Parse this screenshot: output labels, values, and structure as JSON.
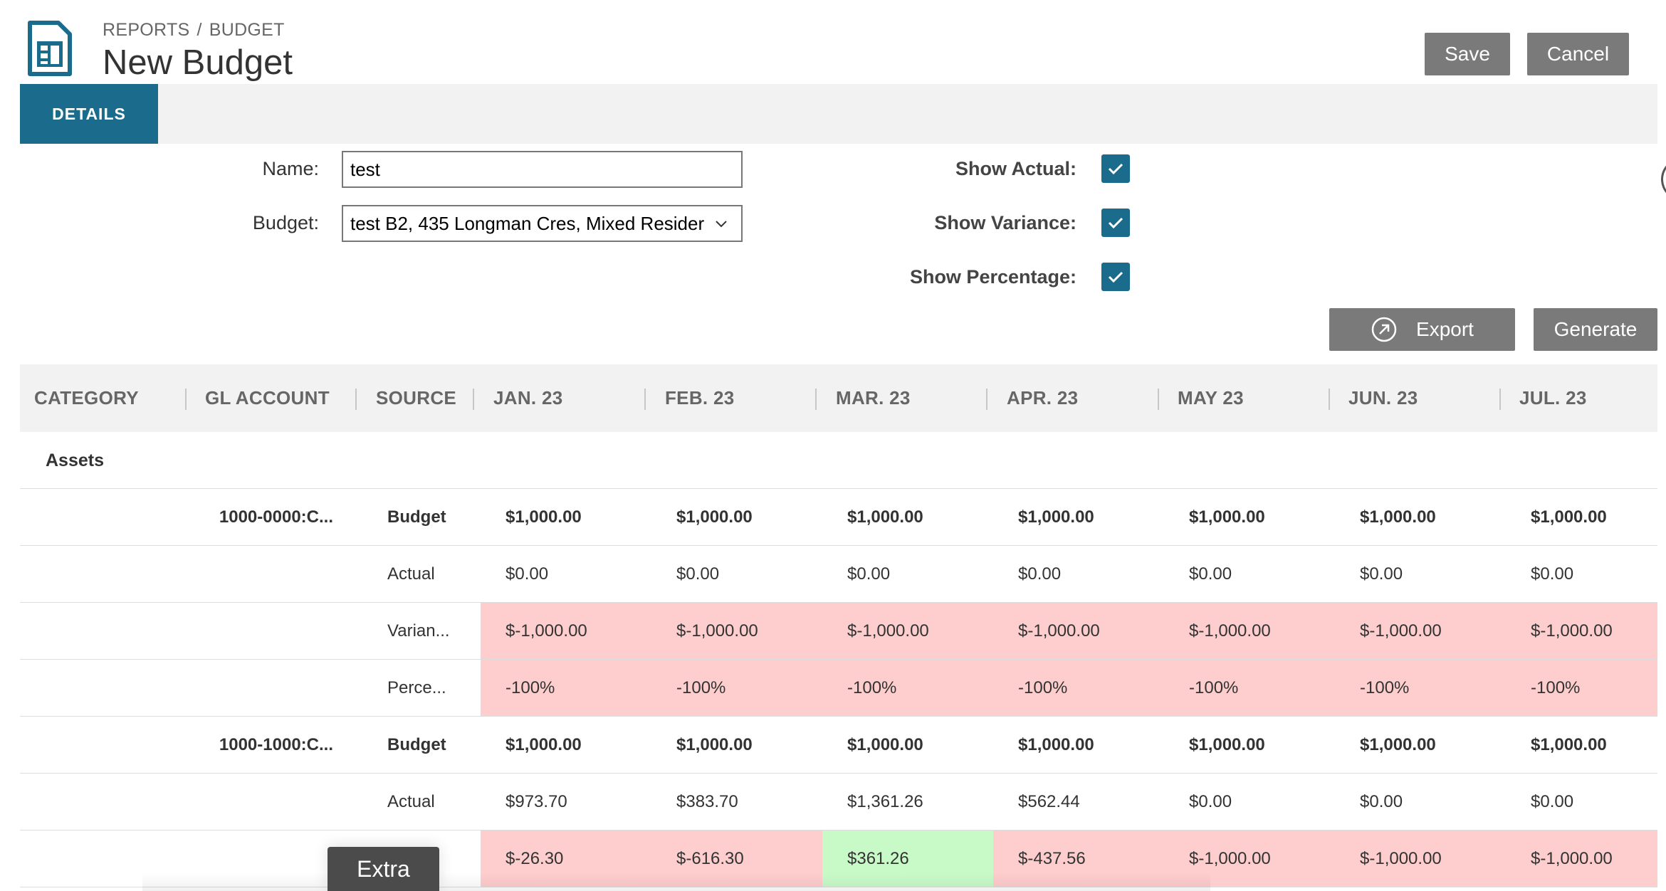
{
  "header": {
    "breadcrumb": [
      "REPORTS",
      "BUDGET"
    ],
    "breadcrumb_separator": "/",
    "title": "New Budget",
    "save_label": "Save",
    "cancel_label": "Cancel",
    "icon": "report-document-icon"
  },
  "tabs": [
    {
      "label": "DETAILS",
      "active": true
    }
  ],
  "form": {
    "name_label": "Name:",
    "name_value": "test",
    "budget_label": "Budget:",
    "budget_value": "test B2,  435 Longman Cres, Mixed Resider",
    "show_actual_label": "Show Actual:",
    "show_actual": true,
    "show_variance_label": "Show Variance:",
    "show_variance": true,
    "show_percentage_label": "Show Percentage:",
    "show_percentage": true
  },
  "actions": {
    "export_label": "Export",
    "generate_label": "Generate"
  },
  "table": {
    "columns": [
      "CATEGORY",
      "GL ACCOUNT",
      "SOURCE",
      "JAN. 23",
      "FEB. 23",
      "MAR. 23",
      "APR. 23",
      "MAY 23",
      "JUN. 23",
      "JUL. 23"
    ],
    "category": "Assets",
    "rows": [
      {
        "gl": "1000-0000:C...",
        "source": "Budget",
        "bold": true,
        "status": "none",
        "values": [
          "$1,000.00",
          "$1,000.00",
          "$1,000.00",
          "$1,000.00",
          "$1,000.00",
          "$1,000.00",
          "$1,000.00"
        ]
      },
      {
        "gl": "",
        "source": "Actual",
        "bold": false,
        "status": "none",
        "values": [
          "$0.00",
          "$0.00",
          "$0.00",
          "$0.00",
          "$0.00",
          "$0.00",
          "$0.00"
        ]
      },
      {
        "gl": "",
        "source": "Varian...",
        "bold": false,
        "status": [
          "neg",
          "neg",
          "neg",
          "neg",
          "neg",
          "neg",
          "neg"
        ],
        "values": [
          "$-1,000.00",
          "$-1,000.00",
          "$-1,000.00",
          "$-1,000.00",
          "$-1,000.00",
          "$-1,000.00",
          "$-1,000.00"
        ]
      },
      {
        "gl": "",
        "source": "Perce...",
        "bold": false,
        "status": [
          "neg",
          "neg",
          "neg",
          "neg",
          "neg",
          "neg",
          "neg"
        ],
        "values": [
          "-100%",
          "-100%",
          "-100%",
          "-100%",
          "-100%",
          "-100%",
          "-100%"
        ]
      },
      {
        "gl": "1000-1000:C...",
        "source": "Budget",
        "bold": true,
        "status": "none",
        "values": [
          "$1,000.00",
          "$1,000.00",
          "$1,000.00",
          "$1,000.00",
          "$1,000.00",
          "$1,000.00",
          "$1,000.00"
        ]
      },
      {
        "gl": "",
        "source": "Actual",
        "bold": false,
        "status": "none",
        "values": [
          "$973.70",
          "$383.70",
          "$1,361.26",
          "$562.44",
          "$0.00",
          "$0.00",
          "$0.00"
        ]
      },
      {
        "gl": "",
        "source": "...",
        "bold": false,
        "status": [
          "neg",
          "neg",
          "pos",
          "neg",
          "neg",
          "neg",
          "neg"
        ],
        "values": [
          "$-26.30",
          "$-616.30",
          "$361.26",
          "$-437.56",
          "$-1,000.00",
          "$-1,000.00",
          "$-1,000.00"
        ]
      }
    ]
  },
  "footer": {
    "extra_tab_label": "Extra"
  },
  "colors": {
    "accent": "#1b6b8c",
    "button_grey": "#7a7a7a",
    "negative_bg": "#fecdcd",
    "positive_bg": "#c8fac8"
  }
}
